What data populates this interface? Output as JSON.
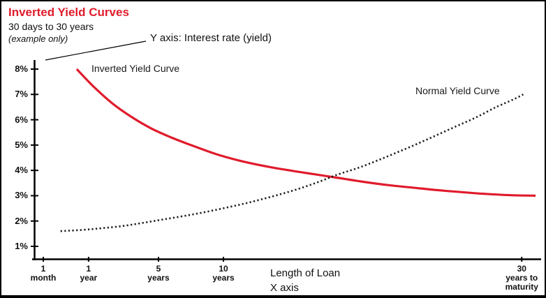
{
  "header": {
    "title": "Inverted Yield Curves",
    "subtitle": "30 days to 30 years",
    "note": "(example only)"
  },
  "colors": {
    "accent_red": "#e01b2c",
    "curve_black": "#1a1a1a",
    "axis_black": "#000000"
  },
  "annotations": {
    "y_axis": "Y axis: Interest rate (yield)",
    "x_axis_line1": "Length of Loan",
    "x_axis_line2": "X axis"
  },
  "chart_data": {
    "type": "line",
    "title": "Inverted Yield Curves",
    "subtitle": "30 days to 30 years (example only)",
    "ylabel": "Interest rate (yield)",
    "xlabel": "Length of Loan",
    "ylim": [
      1,
      8
    ],
    "grid": false,
    "legend": "inline-labels",
    "y_ticks": [
      {
        "value": 8,
        "label": "8%"
      },
      {
        "value": 7,
        "label": "7%"
      },
      {
        "value": 6,
        "label": "6%"
      },
      {
        "value": 5,
        "label": "5%"
      },
      {
        "value": 4,
        "label": "4%"
      },
      {
        "value": 3,
        "label": "3%"
      },
      {
        "value": 2,
        "label": "2%"
      },
      {
        "value": 1,
        "label": "1%"
      }
    ],
    "x_ticks": [
      {
        "pos": 0.0,
        "lines": [
          "1",
          "month"
        ]
      },
      {
        "pos": 0.092,
        "lines": [
          "1",
          "year"
        ]
      },
      {
        "pos": 0.234,
        "lines": [
          "5",
          "years"
        ]
      },
      {
        "pos": 0.366,
        "lines": [
          "10",
          "years"
        ]
      },
      {
        "pos": 0.972,
        "lines": [
          "30",
          "years to",
          "maturity"
        ]
      }
    ],
    "series": [
      {
        "name": "Inverted Yield Curve",
        "id": "inverted-yield-curve",
        "style": "solid",
        "color": "#e01b2c",
        "points": [
          [
            0.068,
            8.0
          ],
          [
            0.1,
            7.35
          ],
          [
            0.14,
            6.65
          ],
          [
            0.18,
            6.1
          ],
          [
            0.22,
            5.65
          ],
          [
            0.26,
            5.3
          ],
          [
            0.3,
            5.0
          ],
          [
            0.35,
            4.65
          ],
          [
            0.4,
            4.38
          ],
          [
            0.45,
            4.17
          ],
          [
            0.5,
            4.0
          ],
          [
            0.55,
            3.85
          ],
          [
            0.6,
            3.7
          ],
          [
            0.65,
            3.55
          ],
          [
            0.7,
            3.42
          ],
          [
            0.75,
            3.32
          ],
          [
            0.8,
            3.22
          ],
          [
            0.85,
            3.14
          ],
          [
            0.9,
            3.07
          ],
          [
            0.95,
            3.02
          ],
          [
            1.0,
            3.0
          ]
        ]
      },
      {
        "name": "Normal Yield Curve",
        "id": "normal-yield-curve",
        "style": "dotted",
        "color": "#1a1a1a",
        "points": [
          [
            0.035,
            1.6
          ],
          [
            0.08,
            1.65
          ],
          [
            0.12,
            1.72
          ],
          [
            0.16,
            1.8
          ],
          [
            0.2,
            1.92
          ],
          [
            0.24,
            2.05
          ],
          [
            0.28,
            2.18
          ],
          [
            0.32,
            2.32
          ],
          [
            0.36,
            2.48
          ],
          [
            0.4,
            2.65
          ],
          [
            0.44,
            2.84
          ],
          [
            0.48,
            3.05
          ],
          [
            0.52,
            3.28
          ],
          [
            0.56,
            3.55
          ],
          [
            0.6,
            3.85
          ],
          [
            0.64,
            4.1
          ],
          [
            0.68,
            4.4
          ],
          [
            0.72,
            4.72
          ],
          [
            0.76,
            5.05
          ],
          [
            0.8,
            5.4
          ],
          [
            0.84,
            5.75
          ],
          [
            0.88,
            6.1
          ],
          [
            0.92,
            6.5
          ],
          [
            0.955,
            6.8
          ],
          [
            0.975,
            7.0
          ]
        ]
      }
    ]
  }
}
